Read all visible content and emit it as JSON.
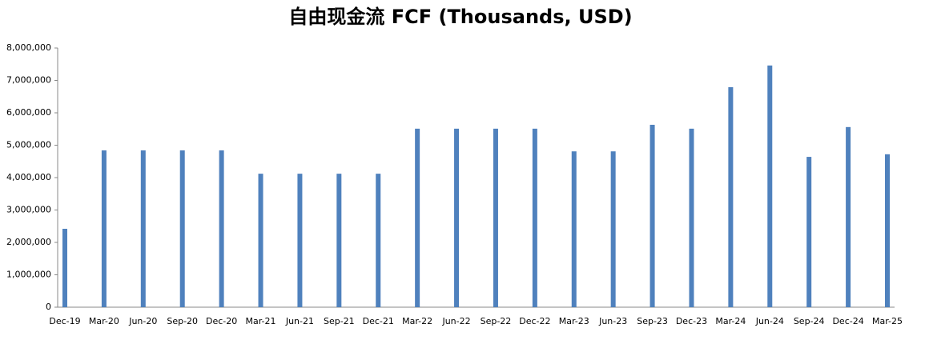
{
  "chart_data": {
    "type": "bar",
    "title": "自由现金流 FCF (Thousands, USD)",
    "categories": [
      "Dec-19",
      "Mar-20",
      "Jun-20",
      "Sep-20",
      "Dec-20",
      "Mar-21",
      "Jun-21",
      "Sep-21",
      "Dec-21",
      "Mar-22",
      "Jun-22",
      "Sep-22",
      "Dec-22",
      "Mar-23",
      "Jun-23",
      "Sep-23",
      "Dec-23",
      "Mar-24",
      "Jun-24",
      "Sep-24",
      "Dec-24",
      "Mar-25"
    ],
    "values": [
      2420000,
      4840000,
      4840000,
      4840000,
      4840000,
      4120000,
      4120000,
      4120000,
      4120000,
      5510000,
      5510000,
      5510000,
      5510000,
      4810000,
      4810000,
      5630000,
      5510000,
      6790000,
      7460000,
      4640000,
      5560000,
      4720000
    ],
    "color": "#4f81bd",
    "ylim": [
      0,
      8000000
    ],
    "yticks": [
      0,
      {
        "value": 1000000,
        "label": "1,000,000"
      },
      {
        "value": 2000000,
        "label": "2,000,000"
      },
      {
        "value": 3000000,
        "label": "3,000,000"
      },
      {
        "value": 4000000,
        "label": "4,000,000"
      },
      {
        "value": 5000000,
        "label": "5,000,000"
      },
      {
        "value": 6000000,
        "label": "6,000,000"
      },
      {
        "value": 7000000,
        "label": "7,000,000"
      },
      {
        "value": 8000000,
        "label": "8,000,000"
      }
    ],
    "grid": false
  }
}
